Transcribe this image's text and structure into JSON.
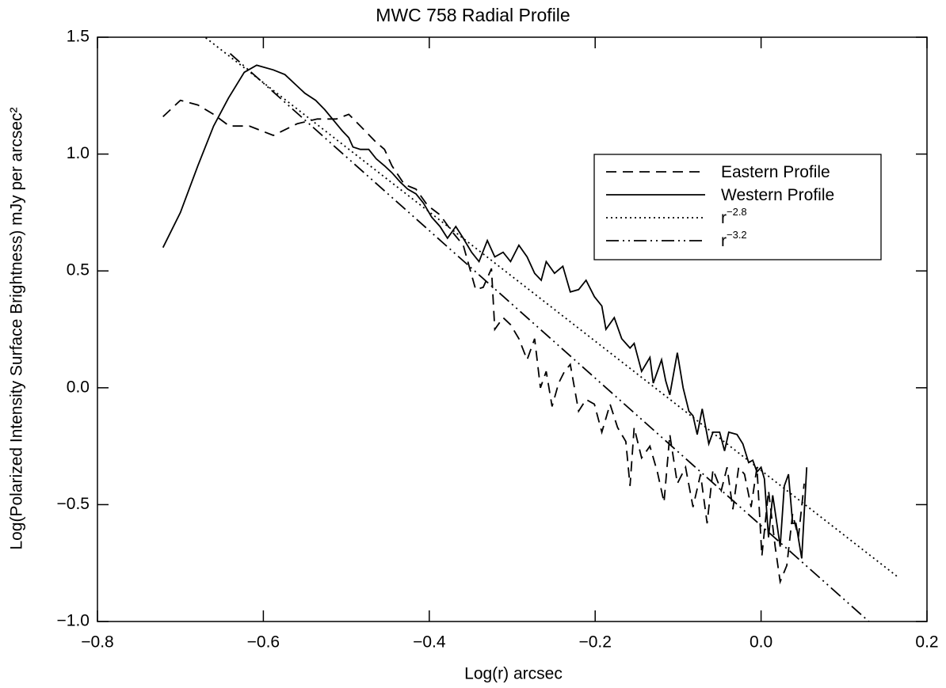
{
  "chart_data": {
    "type": "line",
    "title": "MWC 758 Radial Profile",
    "x_label": "Log(r) arcsec",
    "y_label": "Log(Polarized Intensity Surface Brightness) mJy per arcsec²",
    "xlim": [
      -0.8,
      0.2
    ],
    "ylim": [
      -1.0,
      1.5
    ],
    "xticks": [
      {
        "value": -0.8,
        "label": "−0.8"
      },
      {
        "value": -0.6,
        "label": "−0.6"
      },
      {
        "value": -0.4,
        "label": "−0.4"
      },
      {
        "value": -0.2,
        "label": "−0.2"
      },
      {
        "value": 0.0,
        "label": "0.0"
      },
      0.2
    ],
    "yticks": [
      {
        "value": -1.0,
        "label": "−1.0"
      },
      {
        "value": -0.5,
        "label": "−0.5"
      },
      {
        "value": 0.0,
        "label": "0.0"
      },
      0.5,
      {
        "value": 1.0,
        "label": "1.0"
      },
      1.5
    ],
    "legend": "upper right",
    "series": [
      {
        "name": "Eastern Profile",
        "color": "#000000",
        "linestyle": "dashed",
        "x": [
          -0.721,
          -0.7,
          -0.679,
          -0.66,
          -0.641,
          -0.617,
          -0.588,
          -0.559,
          -0.535,
          -0.512,
          -0.497,
          -0.483,
          -0.464,
          -0.454,
          -0.445,
          -0.43,
          -0.416,
          -0.402,
          -0.387,
          -0.373,
          -0.359,
          -0.344,
          -0.335,
          -0.325,
          -0.321,
          -0.311,
          -0.302,
          -0.292,
          -0.282,
          -0.273,
          -0.266,
          -0.259,
          -0.252,
          -0.244,
          -0.237,
          -0.23,
          -0.22,
          -0.211,
          -0.201,
          -0.192,
          -0.182,
          -0.173,
          -0.163,
          -0.158,
          -0.153,
          -0.144,
          -0.134,
          -0.125,
          -0.117,
          -0.11,
          -0.101,
          -0.091,
          -0.082,
          -0.073,
          -0.065,
          -0.058,
          -0.048,
          -0.041,
          -0.034,
          -0.027,
          -0.02,
          -0.012,
          -0.005,
          0.001,
          0.009,
          0.017,
          0.023,
          0.031,
          0.038,
          0.045,
          0.052
        ],
        "values": [
          1.16,
          1.23,
          1.21,
          1.17,
          1.12,
          1.12,
          1.08,
          1.13,
          1.15,
          1.15,
          1.17,
          1.12,
          1.05,
          1.02,
          0.95,
          0.87,
          0.85,
          0.78,
          0.74,
          0.67,
          0.61,
          0.42,
          0.43,
          0.51,
          0.25,
          0.3,
          0.27,
          0.21,
          0.12,
          0.21,
          0.0,
          0.07,
          -0.08,
          0.02,
          0.07,
          0.1,
          -0.1,
          -0.05,
          -0.07,
          -0.19,
          -0.07,
          -0.17,
          -0.23,
          -0.42,
          -0.17,
          -0.3,
          -0.25,
          -0.36,
          -0.49,
          -0.2,
          -0.41,
          -0.34,
          -0.51,
          -0.37,
          -0.58,
          -0.35,
          -0.44,
          -0.34,
          -0.52,
          -0.34,
          -0.37,
          -0.51,
          -0.34,
          -0.72,
          -0.44,
          -0.68,
          -0.83,
          -0.76,
          -0.54,
          -0.64,
          -0.41
        ]
      },
      {
        "name": "Western Profile",
        "color": "#000000",
        "linestyle": "solid",
        "x": [
          -0.721,
          -0.7,
          -0.679,
          -0.66,
          -0.642,
          -0.623,
          -0.608,
          -0.588,
          -0.574,
          -0.562,
          -0.55,
          -0.537,
          -0.526,
          -0.512,
          -0.505,
          -0.497,
          -0.492,
          -0.483,
          -0.473,
          -0.464,
          -0.454,
          -0.445,
          -0.435,
          -0.426,
          -0.416,
          -0.407,
          -0.397,
          -0.387,
          -0.378,
          -0.368,
          -0.359,
          -0.349,
          -0.34,
          -0.33,
          -0.321,
          -0.311,
          -0.302,
          -0.292,
          -0.282,
          -0.273,
          -0.265,
          -0.259,
          -0.249,
          -0.239,
          -0.23,
          -0.22,
          -0.211,
          -0.201,
          -0.192,
          -0.187,
          -0.177,
          -0.168,
          -0.158,
          -0.153,
          -0.144,
          -0.134,
          -0.13,
          -0.12,
          -0.115,
          -0.11,
          -0.101,
          -0.094,
          -0.087,
          -0.082,
          -0.077,
          -0.071,
          -0.063,
          -0.058,
          -0.05,
          -0.044,
          -0.039,
          -0.029,
          -0.022,
          -0.015,
          -0.01,
          -0.005,
          0.0,
          0.004,
          0.009,
          0.014,
          0.019,
          0.023,
          0.028,
          0.033,
          0.038,
          0.042,
          0.049,
          0.055
        ],
        "values": [
          0.6,
          0.75,
          0.95,
          1.12,
          1.24,
          1.35,
          1.38,
          1.36,
          1.34,
          1.3,
          1.26,
          1.23,
          1.19,
          1.13,
          1.1,
          1.07,
          1.03,
          1.02,
          1.02,
          0.98,
          0.95,
          0.92,
          0.88,
          0.85,
          0.83,
          0.79,
          0.73,
          0.69,
          0.64,
          0.69,
          0.64,
          0.58,
          0.54,
          0.63,
          0.56,
          0.58,
          0.54,
          0.61,
          0.56,
          0.49,
          0.46,
          0.54,
          0.49,
          0.52,
          0.41,
          0.42,
          0.46,
          0.39,
          0.35,
          0.25,
          0.3,
          0.21,
          0.17,
          0.19,
          0.07,
          0.13,
          0.02,
          0.12,
          0.03,
          -0.03,
          0.15,
          0.0,
          -0.1,
          -0.12,
          -0.2,
          -0.09,
          -0.24,
          -0.19,
          -0.19,
          -0.27,
          -0.19,
          -0.2,
          -0.24,
          -0.32,
          -0.31,
          -0.36,
          -0.34,
          -0.39,
          -0.64,
          -0.46,
          -0.58,
          -0.68,
          -0.42,
          -0.37,
          -0.58,
          -0.58,
          -0.73,
          -0.34
        ]
      },
      {
        "name": "r",
        "exponent": "−2.8",
        "color": "#000000",
        "linestyle": "dotted",
        "x": [
          -0.674,
          0.165
        ],
        "values": [
          1.51,
          -0.81
        ]
      },
      {
        "name": "r",
        "exponent": "−3.2",
        "color": "#000000",
        "linestyle": "dashdotdot",
        "x": [
          -0.64,
          0.13
        ],
        "values": [
          1.43,
          -1.0
        ]
      }
    ]
  }
}
